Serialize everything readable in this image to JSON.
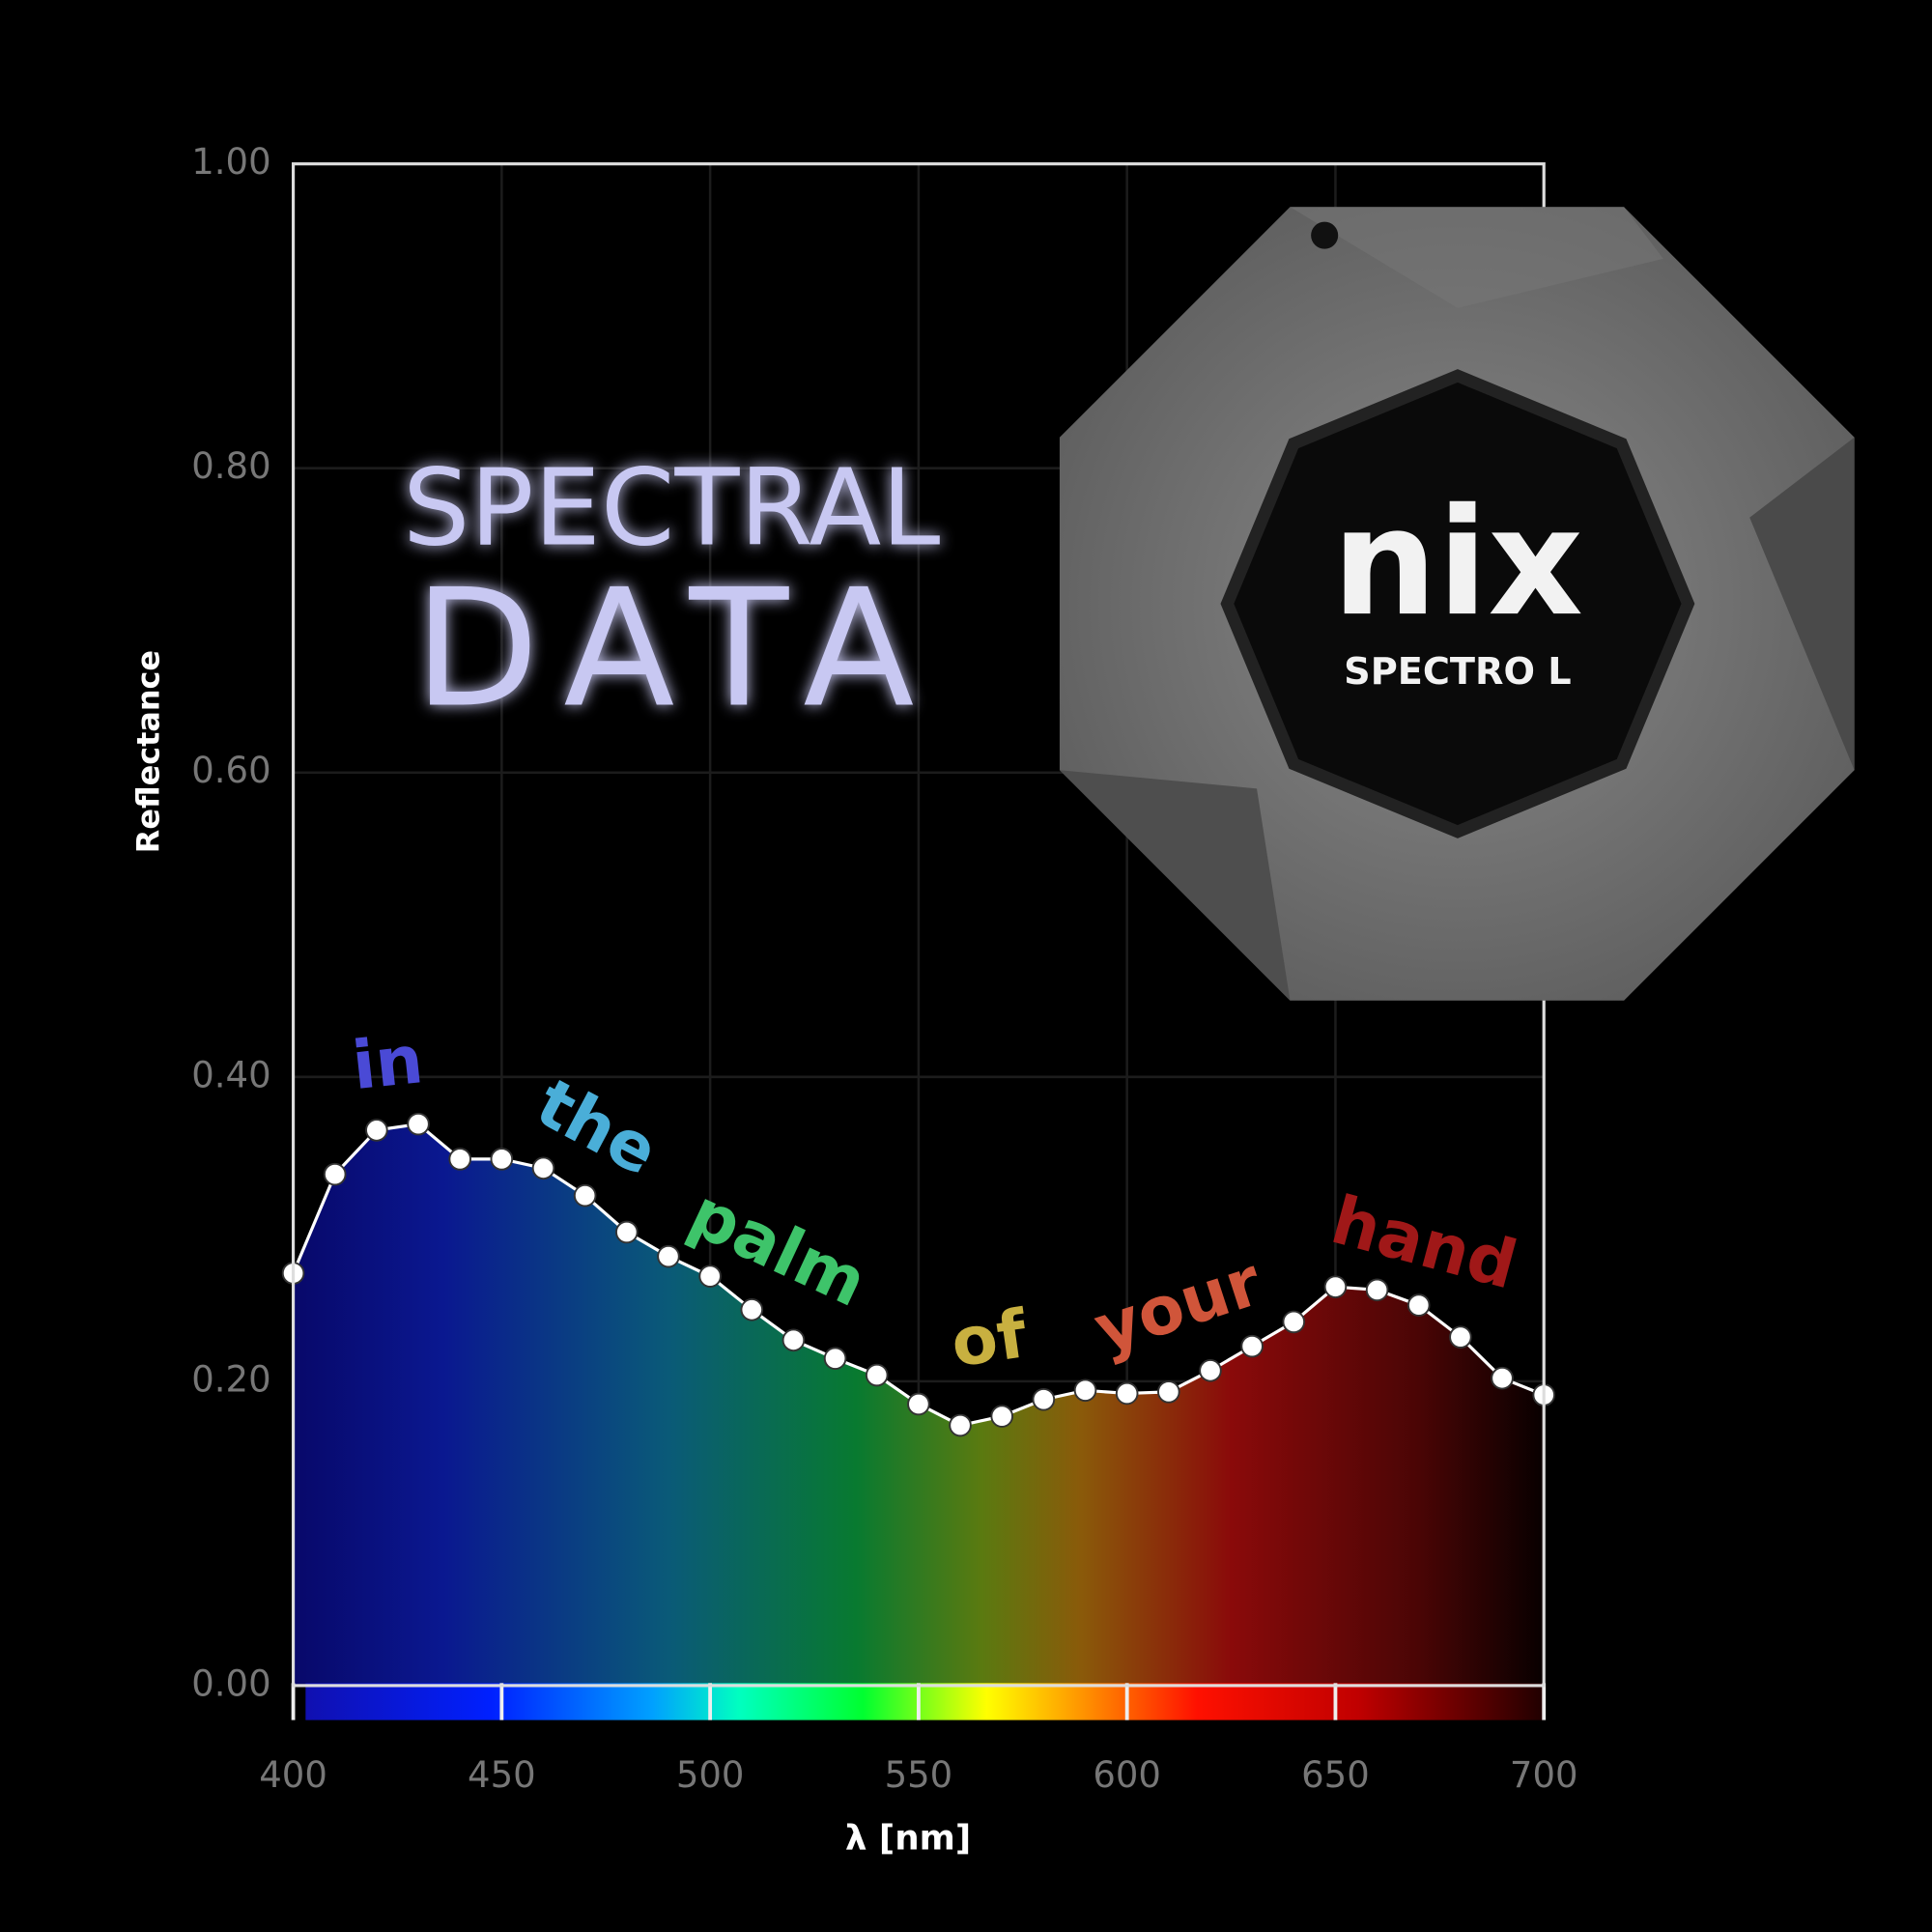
{
  "chart_data": {
    "type": "line",
    "title_lines": [
      "SPECTRAL",
      "DATA"
    ],
    "xlabel": "λ [nm]",
    "ylabel": "Reflectance",
    "x": [
      400,
      410,
      420,
      430,
      440,
      450,
      460,
      470,
      480,
      490,
      500,
      510,
      520,
      530,
      540,
      550,
      560,
      570,
      580,
      590,
      600,
      610,
      620,
      630,
      640,
      650,
      660,
      670,
      680,
      690,
      700
    ],
    "series": [
      {
        "color": "#ffffff",
        "values": [
          0.271,
          0.336,
          0.365,
          0.369,
          0.346,
          0.346,
          0.34,
          0.322,
          0.298,
          0.282,
          0.269,
          0.247,
          0.227,
          0.215,
          0.204,
          0.185,
          0.171,
          0.177,
          0.188,
          0.194,
          0.192,
          0.193,
          0.207,
          0.223,
          0.239,
          0.262,
          0.26,
          0.25,
          0.229,
          0.202,
          0.191
        ]
      }
    ],
    "xlim": [
      400,
      700
    ],
    "ylim": [
      0,
      1
    ],
    "xticks": [
      400,
      450,
      500,
      550,
      600,
      650,
      700
    ],
    "yticks": [
      {
        "value": 0,
        "label": "0.00"
      },
      {
        "value": 0.2,
        "label": "0.20"
      },
      {
        "value": 0.4,
        "label": "0.40"
      },
      {
        "value": 0.6,
        "label": "0.60"
      },
      {
        "value": 0.8,
        "label": "0.80"
      },
      {
        "value": 1,
        "label": "1.00"
      }
    ],
    "grid": true,
    "annotations": [
      {
        "text": "in",
        "color": "#4a4ad6"
      },
      {
        "text": "the",
        "color": "#4aaed8"
      },
      {
        "text": "palm",
        "color": "#3ec46a"
      },
      {
        "text": "of",
        "color": "#c8b040"
      },
      {
        "text": "your",
        "color": "#d0553a"
      },
      {
        "text": "hand",
        "color": "#a01818"
      }
    ],
    "device": {
      "logo": "nix",
      "model": "SPECTRO L"
    }
  }
}
